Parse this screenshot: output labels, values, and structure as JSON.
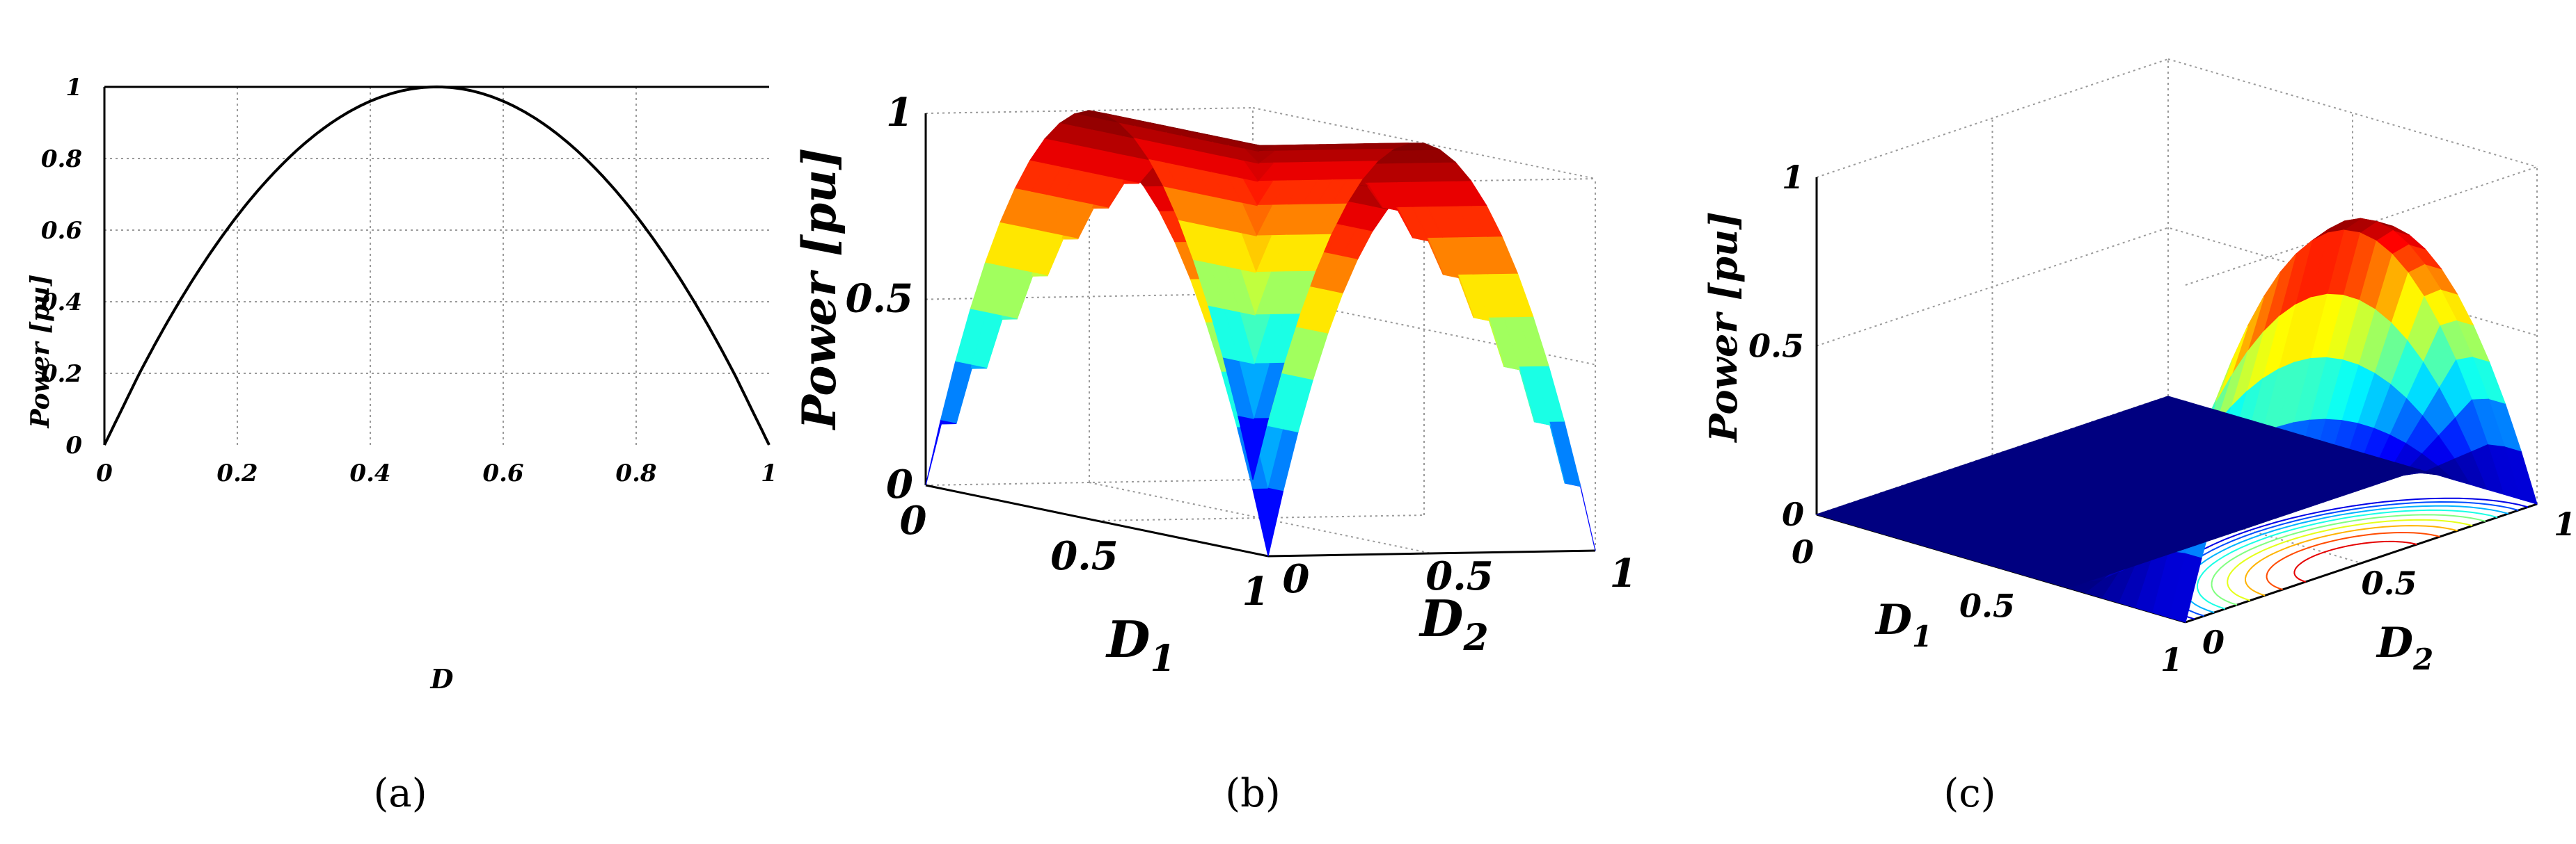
{
  "chart_data": [
    {
      "type": "line",
      "caption": "(a)",
      "xlabel": "D",
      "ylabel": "Power [pu]",
      "xlim": [
        0,
        1
      ],
      "ylim": [
        0,
        1
      ],
      "x_ticks": [
        "0",
        "0.2",
        "0.4",
        "0.6",
        "0.8",
        "1"
      ],
      "y_ticks": [
        "0",
        "0.2",
        "0.4",
        "0.6",
        "0.8",
        "1"
      ],
      "grid": true,
      "series": [
        {
          "x": [
            0,
            0.05,
            0.1,
            0.15,
            0.2,
            0.25,
            0.3,
            0.35,
            0.4,
            0.45,
            0.5,
            0.55,
            0.6,
            0.65,
            0.7,
            0.75,
            0.8,
            0.85,
            0.9,
            0.95,
            1
          ],
          "y": [
            0,
            0.19,
            0.36,
            0.51,
            0.64,
            0.75,
            0.84,
            0.91,
            0.96,
            0.99,
            1,
            0.99,
            0.96,
            0.91,
            0.84,
            0.75,
            0.64,
            0.51,
            0.36,
            0.19,
            0
          ],
          "color": "#000000"
        }
      ]
    },
    {
      "type": "surface",
      "caption": "(b)",
      "xlabel": "D",
      "xlabel_sub": "1",
      "ylabel": "D",
      "ylabel_sub": "2",
      "zlabel": "Power [pu]",
      "xlim": [
        0,
        1
      ],
      "ylim": [
        0,
        1
      ],
      "zlim": [
        0,
        1
      ],
      "x_ticks": [
        "0",
        "0.5",
        "1"
      ],
      "y_ticks": [
        "0",
        "0.5",
        "1"
      ],
      "z_ticks": [
        "0",
        "0.5",
        "1"
      ],
      "colormap": "jet",
      "surface_fn": "4*max(D1*(1-D1), D2*(1-D2))",
      "grid": true
    },
    {
      "type": "surface",
      "caption": "(c)",
      "xlabel": "D",
      "xlabel_sub": "1",
      "ylabel": "D",
      "ylabel_sub": "2",
      "zlabel": "Power [pu]",
      "xlim": [
        0,
        1
      ],
      "ylim": [
        0,
        1
      ],
      "zlim": [
        0,
        1
      ],
      "x_ticks": [
        "0",
        "0.5",
        "1"
      ],
      "y_ticks": [
        "0",
        "0.5",
        "1"
      ],
      "z_ticks": [
        "0",
        "0.5",
        "1"
      ],
      "colormap": "jet",
      "surface_fn": "4*D2*(1-D2) for D1 > 0.7, else 0",
      "contour_levels": [
        0.1,
        0.2,
        0.3,
        0.4,
        0.5,
        0.6,
        0.7,
        0.8,
        0.9
      ],
      "grid": true
    }
  ]
}
